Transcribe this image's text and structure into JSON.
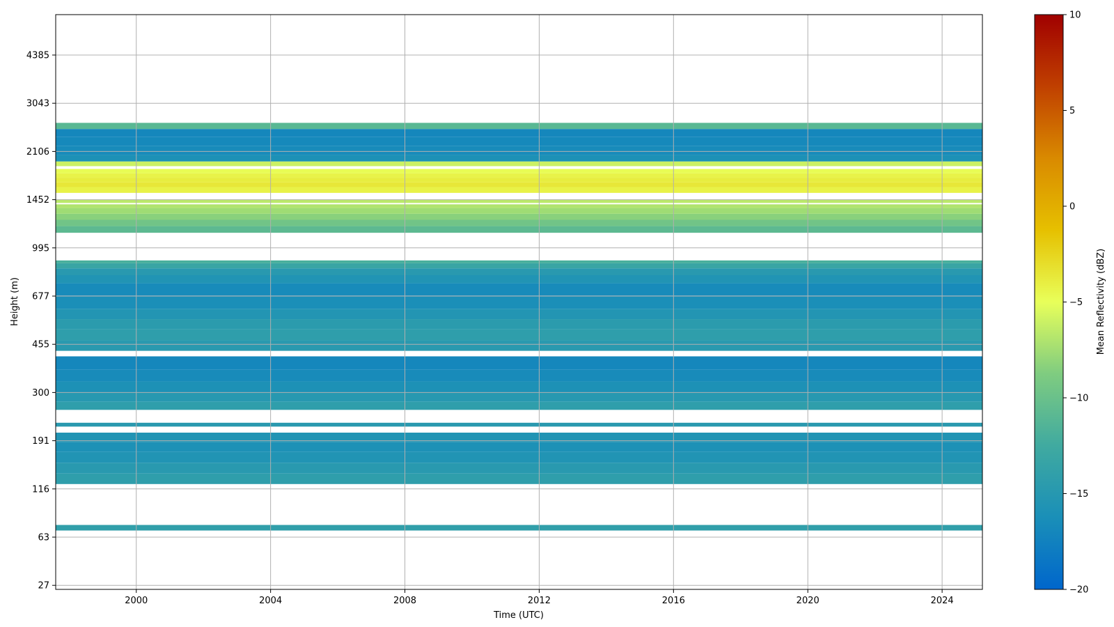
{
  "chart_data": {
    "type": "heatmap",
    "title": "",
    "xlabel": "Time (UTC)",
    "ylabel": "Height (m)",
    "xlim": [
      1997.6,
      2025.2
    ],
    "xticks": [
      "2000",
      "2004",
      "2008",
      "2012",
      "2016",
      "2020",
      "2024"
    ],
    "yscale": "band-index",
    "ytick_labels": [
      "27",
      "63",
      "116",
      "191",
      "300",
      "455",
      "677",
      "995",
      "1452",
      "2106",
      "3043",
      "4385"
    ],
    "grid": true,
    "colorbar": {
      "label": "Mean Reflectivity (dBZ)",
      "vmin": -20,
      "vmax": 10,
      "ticks": [
        "10",
        "5",
        "0",
        "−5",
        "−10",
        "−15",
        "−20"
      ],
      "colors": [
        "#0066cc",
        "#1a8fb8",
        "#40aaa0",
        "#7fcc80",
        "#e8ff5a",
        "#e6c000",
        "#d98a00",
        "#c04000",
        "#a00000"
      ]
    },
    "bands": [
      {
        "h0": 68.5,
        "h1": 73.5,
        "value": -14.0
      },
      {
        "h0": 122,
        "h1": 136,
        "value": -14.2
      },
      {
        "h0": 136,
        "h1": 152,
        "value": -14.8
      },
      {
        "h0": 152,
        "h1": 170,
        "value": -15.6
      },
      {
        "h0": 170,
        "h1": 188,
        "value": -16.0
      },
      {
        "h0": 188,
        "h1": 206,
        "value": -15.6
      },
      {
        "h0": 218,
        "h1": 226,
        "value": -14.8
      },
      {
        "h0": 255,
        "h1": 275,
        "value": -14.2
      },
      {
        "h0": 275,
        "h1": 300,
        "value": -15.0
      },
      {
        "h0": 300,
        "h1": 330,
        "value": -16.0
      },
      {
        "h0": 330,
        "h1": 365,
        "value": -16.6
      },
      {
        "h0": 365,
        "h1": 410,
        "value": -17.0
      },
      {
        "h0": 430,
        "h1": 470,
        "value": -14.8
      },
      {
        "h0": 470,
        "h1": 515,
        "value": -14.2
      },
      {
        "h0": 515,
        "h1": 560,
        "value": -14.6
      },
      {
        "h0": 560,
        "h1": 610,
        "value": -15.4
      },
      {
        "h0": 610,
        "h1": 680,
        "value": -16.2
      },
      {
        "h0": 680,
        "h1": 750,
        "value": -16.6
      },
      {
        "h0": 750,
        "h1": 800,
        "value": -15.6
      },
      {
        "h0": 800,
        "h1": 845,
        "value": -14.8
      },
      {
        "h0": 845,
        "h1": 880,
        "value": -13.2
      },
      {
        "h0": 880,
        "h1": 900,
        "value": -12.0
      },
      {
        "h0": 1120,
        "h1": 1180,
        "value": -10.8
      },
      {
        "h0": 1180,
        "h1": 1240,
        "value": -9.6
      },
      {
        "h0": 1240,
        "h1": 1300,
        "value": -8.4
      },
      {
        "h0": 1300,
        "h1": 1360,
        "value": -7.6
      },
      {
        "h0": 1360,
        "h1": 1400,
        "value": -7.0
      },
      {
        "h0": 1415,
        "h1": 1450,
        "value": -6.6
      },
      {
        "h0": 1530,
        "h1": 1600,
        "value": -4.2
      },
      {
        "h0": 1600,
        "h1": 1660,
        "value": -3.6
      },
      {
        "h0": 1660,
        "h1": 1720,
        "value": -3.9
      },
      {
        "h0": 1720,
        "h1": 1780,
        "value": -4.3
      },
      {
        "h0": 1780,
        "h1": 1840,
        "value": -4.8
      },
      {
        "h0": 1880,
        "h1": 1950,
        "value": -6.0
      },
      {
        "h0": 1950,
        "h1": 2050,
        "value": -16.0
      },
      {
        "h0": 2050,
        "h1": 2200,
        "value": -16.6
      },
      {
        "h0": 2200,
        "h1": 2350,
        "value": -16.8
      },
      {
        "h0": 2350,
        "h1": 2500,
        "value": -17.0
      },
      {
        "h0": 2500,
        "h1": 2620,
        "value": -11.0
      }
    ]
  }
}
